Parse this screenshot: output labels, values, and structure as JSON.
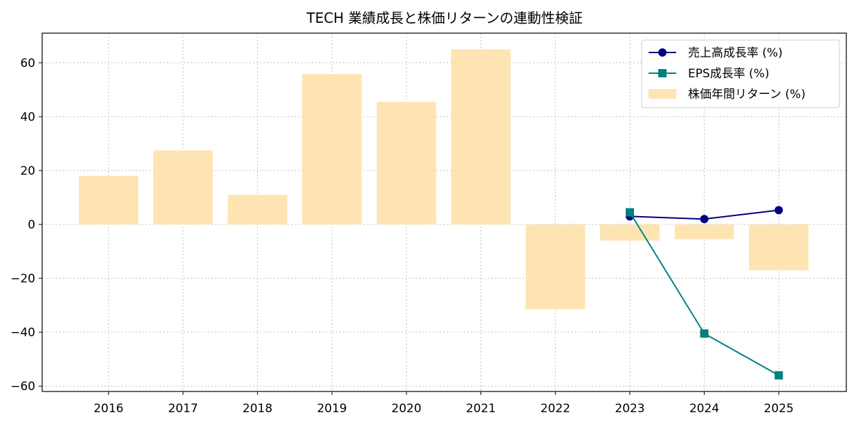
{
  "chart_data": {
    "type": "bar",
    "title": "TECH 業績成長と株価リターンの連動性検証",
    "xlabel": "",
    "ylabel": "",
    "categories": [
      "2016",
      "2017",
      "2018",
      "2019",
      "2020",
      "2021",
      "2022",
      "2023",
      "2024",
      "2025"
    ],
    "ylim": [
      -62,
      71
    ],
    "yticks": [
      -60,
      -40,
      -20,
      0,
      20,
      40,
      60
    ],
    "grid": true,
    "legend_position": "top-right",
    "bar_series": {
      "name": "株価年間リターン (%)",
      "color": "#ffe4b3",
      "values": [
        18.0,
        27.5,
        11.0,
        55.8,
        45.5,
        65.0,
        -31.5,
        -6.0,
        -5.5,
        -17.0
      ]
    },
    "line_series": [
      {
        "name": "売上高成長率 (%)",
        "color": "#000080",
        "marker": "circle",
        "categories": [
          "2023",
          "2024",
          "2025"
        ],
        "values": [
          3.0,
          2.0,
          5.3
        ]
      },
      {
        "name": "EPS成長率 (%)",
        "color": "#008080",
        "marker": "square",
        "categories": [
          "2023",
          "2024",
          "2025"
        ],
        "values": [
          4.5,
          -40.5,
          -56.0
        ]
      }
    ]
  }
}
